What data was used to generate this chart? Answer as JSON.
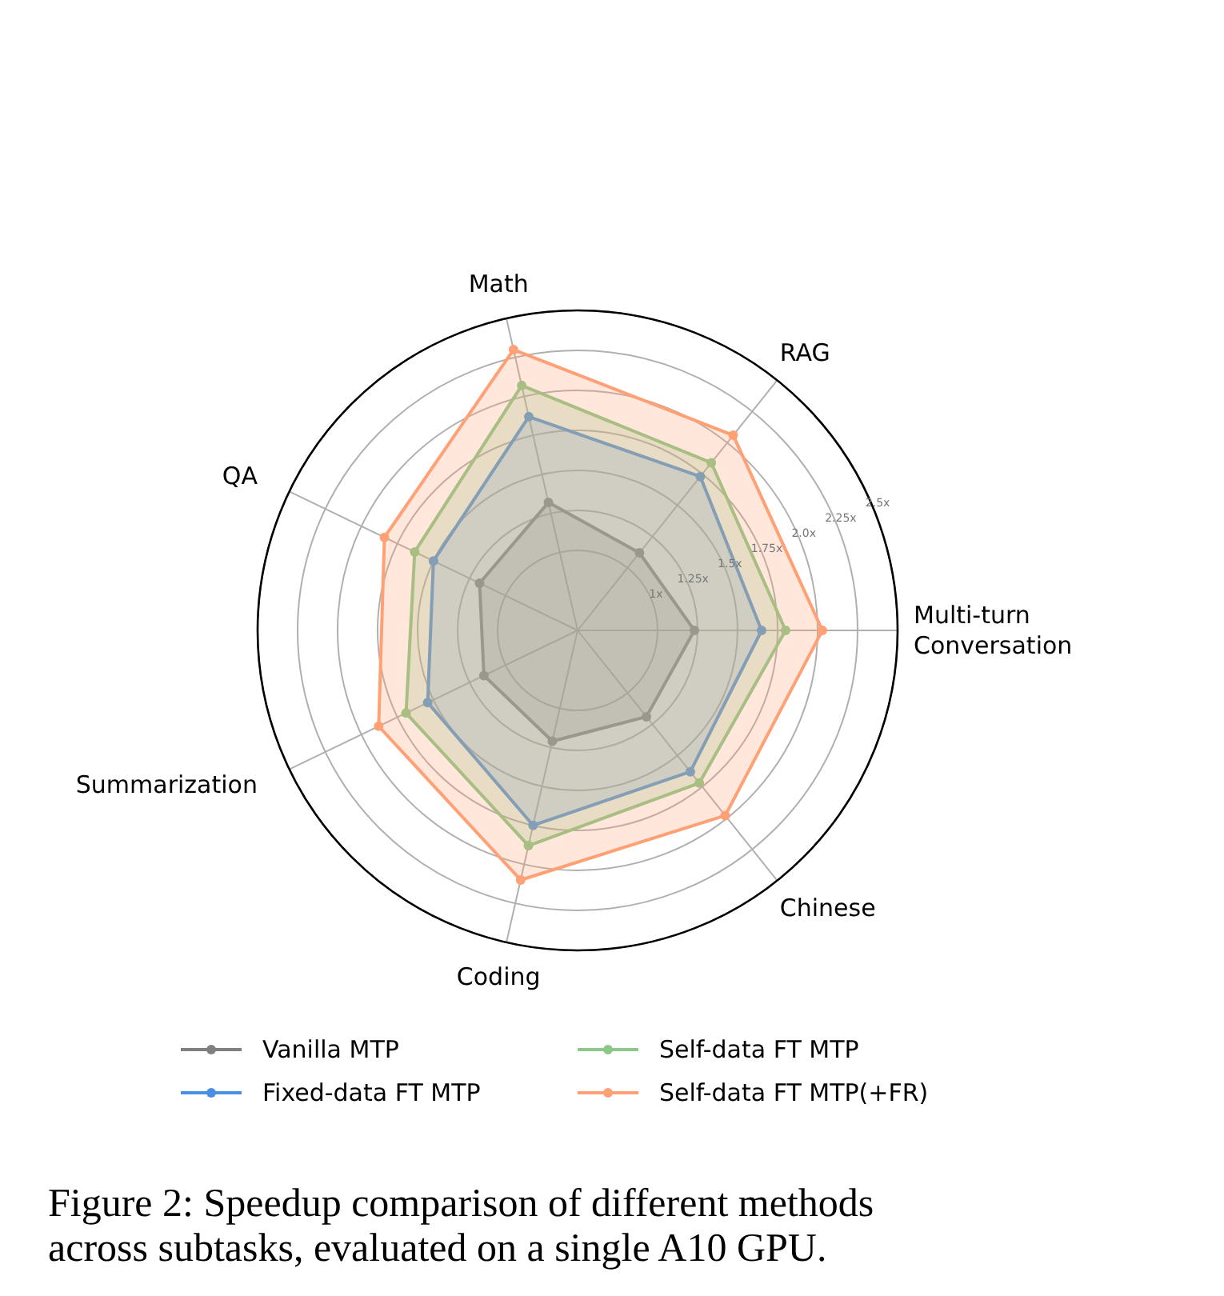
{
  "chart_data": {
    "type": "radar",
    "categories": [
      "Math",
      "RAG",
      "Multi-turn\nConversation",
      "Chinese",
      "Coding",
      "Summarization",
      "QA"
    ],
    "series": [
      {
        "name": "Vanilla MTP",
        "color": "#808080",
        "values": [
          1.32,
          1.12,
          1.23,
          1.19,
          1.21,
          1.15,
          1.18
        ]
      },
      {
        "name": "Fixed-data FT MTP",
        "color": "#4a90e2",
        "values": [
          1.87,
          1.73,
          1.65,
          1.63,
          1.75,
          1.54,
          1.5
        ]
      },
      {
        "name": "Self-data FT MTP",
        "color": "#8cc888",
        "values": [
          2.07,
          1.84,
          1.8,
          1.72,
          1.88,
          1.69,
          1.63
        ]
      },
      {
        "name": "Self-data FT MTP(+FR)",
        "color": "#ffa075",
        "values": [
          2.3,
          2.06,
          2.03,
          1.98,
          2.1,
          1.88,
          1.84
        ]
      }
    ],
    "ylim": [
      0.5,
      2.5
    ],
    "yticks": [
      {
        "value": 1,
        "label": "1x"
      },
      {
        "value": 1.25,
        "label": "1.25x"
      },
      {
        "value": 1.5,
        "label": "1.5x"
      },
      {
        "value": 1.75,
        "label": "1.75x"
      },
      {
        "value": 2.0,
        "label": "2.0x"
      },
      {
        "value": 2.25,
        "label": "2.25x"
      },
      {
        "value": 2.5,
        "label": "2.5x"
      }
    ],
    "grid": true,
    "marker": "circle",
    "legend": "bottom",
    "annotations": [
      "Figure 2: Speedup comparison of different methods across subtasks, evaluated on a single A10 GPU."
    ]
  }
}
